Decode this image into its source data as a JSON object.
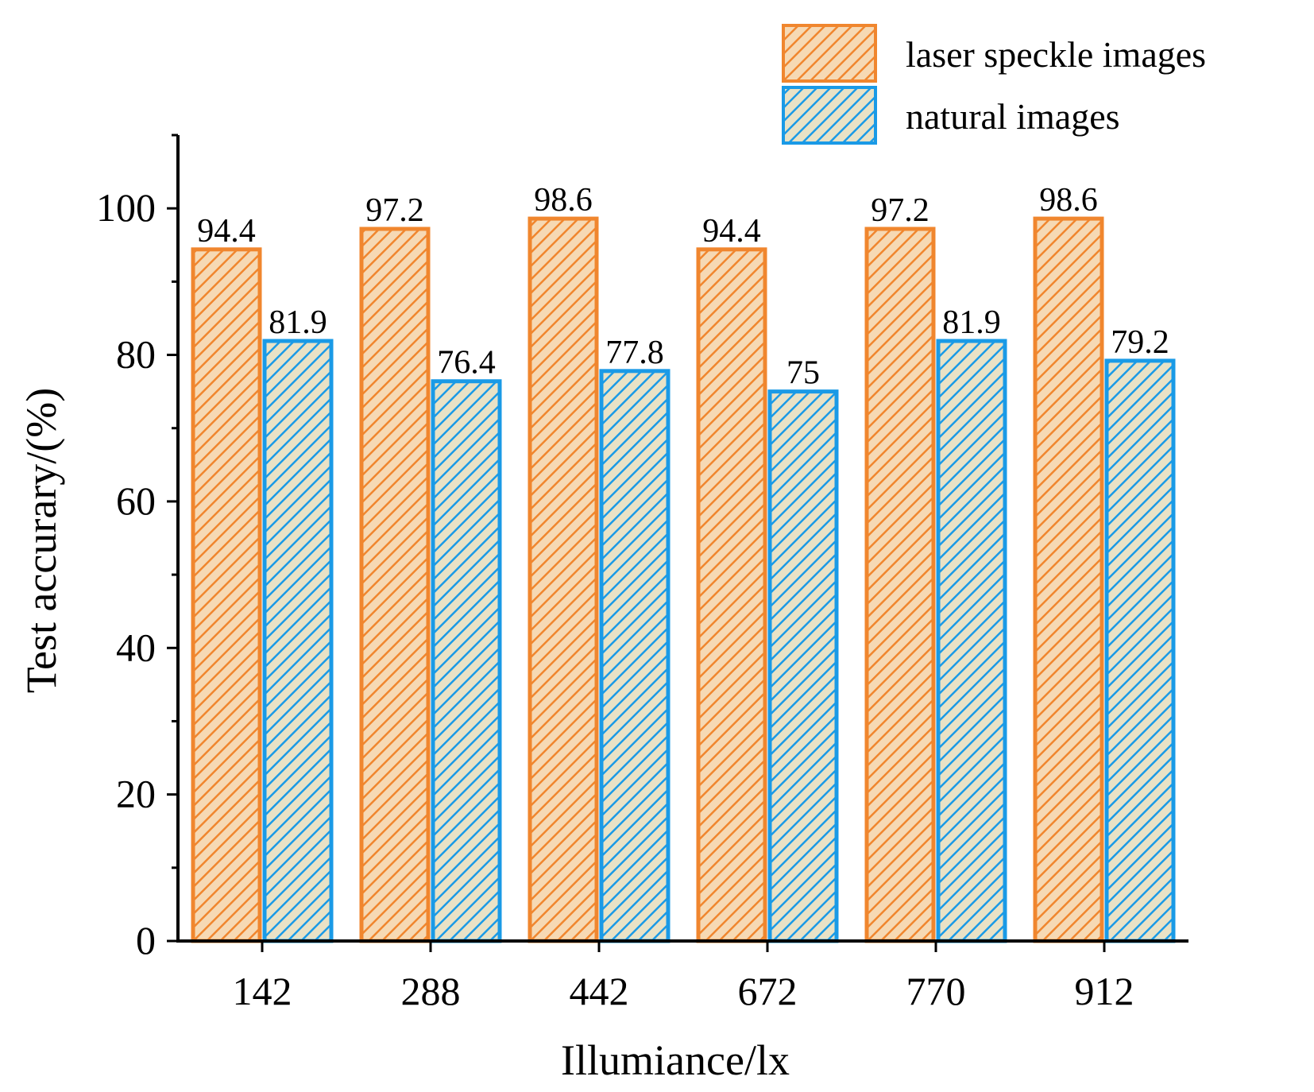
{
  "chart_data": {
    "type": "bar",
    "categories": [
      "142",
      "288",
      "442",
      "672",
      "770",
      "912"
    ],
    "series": [
      {
        "name": "laser speckle images",
        "values": [
          94.4,
          97.2,
          98.6,
          94.4,
          97.2,
          98.6
        ],
        "labels": [
          "94.4",
          "97.2",
          "98.6",
          "94.4",
          "97.2",
          "98.6"
        ],
        "color": "#f0862e",
        "hatch_bg": "#f6d9b4",
        "hatch_line": "#f0862e"
      },
      {
        "name": "natural images",
        "values": [
          81.9,
          76.4,
          77.8,
          75,
          81.9,
          79.2
        ],
        "labels": [
          "81.9",
          "76.4",
          "77.8",
          "75",
          "81.9",
          "79.2"
        ],
        "color": "#1a9ae6",
        "hatch_bg": "#e9e2c6",
        "hatch_line": "#1a9ae6"
      }
    ],
    "xlabel": "Illumiance/lx",
    "ylabel": "Test accurary/(%)",
    "ylim": [
      0,
      110
    ],
    "yticks": [
      "0",
      "20",
      "40",
      "60",
      "80",
      "100"
    ],
    "legend_position": "top-right",
    "grid": false,
    "hatch": "diagonal"
  }
}
